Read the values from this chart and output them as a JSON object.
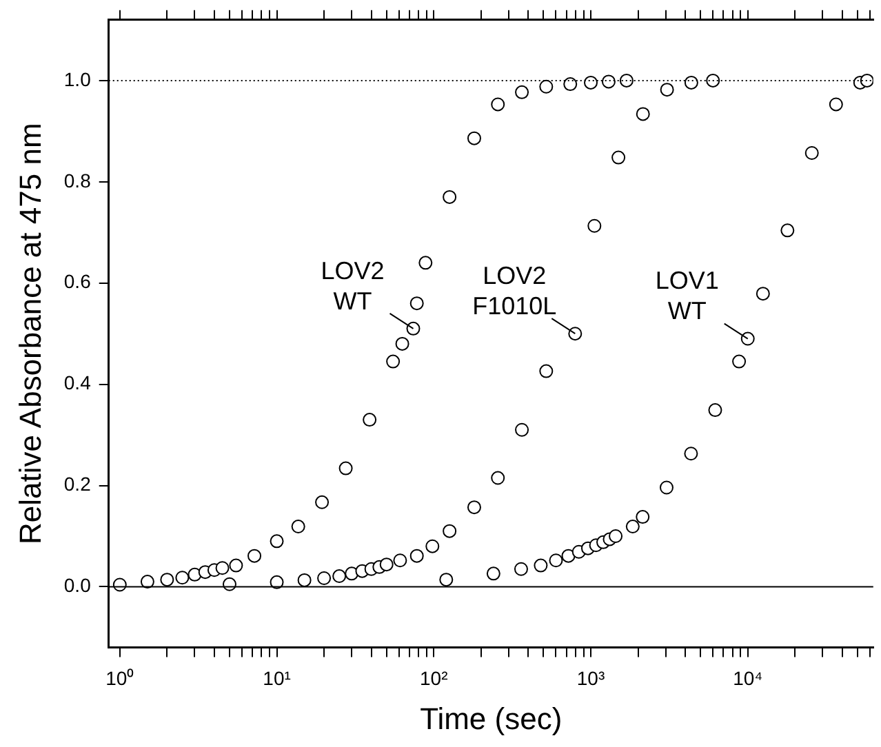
{
  "chart_data": {
    "type": "scatter",
    "xlabel": "Time (sec)",
    "ylabel": "Relative Absorbance at 475 nm",
    "log": "x",
    "grid": false,
    "legend": false,
    "marker": "circle",
    "xlim": [
      0.85,
      63000
    ],
    "ylim": [
      -0.12,
      1.12
    ],
    "xticks": [
      {
        "value": 1,
        "label": "10⁰"
      },
      {
        "value": 2,
        "label": null
      },
      {
        "value": 3,
        "label": null
      },
      {
        "value": 4,
        "label": null
      },
      {
        "value": 5,
        "label": null
      },
      {
        "value": 6,
        "label": null
      },
      {
        "value": 7,
        "label": null
      },
      {
        "value": 8,
        "label": null
      },
      {
        "value": 9,
        "label": null
      },
      {
        "value": 10,
        "label": "10¹"
      },
      {
        "value": 20,
        "label": null
      },
      {
        "value": 30,
        "label": null
      },
      {
        "value": 40,
        "label": null
      },
      {
        "value": 50,
        "label": null
      },
      {
        "value": 60,
        "label": null
      },
      {
        "value": 70,
        "label": null
      },
      {
        "value": 80,
        "label": null
      },
      {
        "value": 90,
        "label": null
      },
      {
        "value": 100,
        "label": "10²"
      },
      {
        "value": 200,
        "label": null
      },
      {
        "value": 300,
        "label": null
      },
      {
        "value": 400,
        "label": null
      },
      {
        "value": 500,
        "label": null
      },
      {
        "value": 600,
        "label": null
      },
      {
        "value": 700,
        "label": null
      },
      {
        "value": 800,
        "label": null
      },
      {
        "value": 900,
        "label": null
      },
      {
        "value": 1000,
        "label": "10³"
      },
      {
        "value": 2000,
        "label": null
      },
      {
        "value": 3000,
        "label": null
      },
      {
        "value": 4000,
        "label": null
      },
      {
        "value": 5000,
        "label": null
      },
      {
        "value": 6000,
        "label": null
      },
      {
        "value": 7000,
        "label": null
      },
      {
        "value": 8000,
        "label": null
      },
      {
        "value": 9000,
        "label": null
      },
      {
        "value": 10000,
        "label": "10⁴"
      },
      {
        "value": 20000,
        "label": null
      },
      {
        "value": 30000,
        "label": null
      },
      {
        "value": 40000,
        "label": null
      },
      {
        "value": 50000,
        "label": null
      },
      {
        "value": 60000,
        "label": null
      }
    ],
    "yticks": [
      {
        "value": 0,
        "label": "0.0"
      },
      {
        "value": 0.2,
        "label": "0.2"
      },
      {
        "value": 0.4,
        "label": "0.4"
      },
      {
        "value": 0.6,
        "label": "0.6"
      },
      {
        "value": 0.8,
        "label": "0.8"
      },
      {
        "value": 1,
        "label": "1.0"
      }
    ],
    "ref_lines": [
      {
        "axis": "y",
        "value": 1,
        "line_style": "dotted",
        "color": "#000000"
      },
      {
        "axis": "y",
        "value": 0,
        "line_style": "solid",
        "color": "#000000"
      }
    ],
    "annotations": [
      {
        "text": "LOV2\nWT",
        "x": 74,
        "y": 0.51
      },
      {
        "text": "LOV2\nF1010L",
        "x": 795,
        "y": 0.5
      },
      {
        "text": "LOV1\nWT",
        "x": 10000,
        "y": 0.49
      }
    ],
    "series": [
      {
        "color": "#000000",
        "x": [
          1,
          1.5,
          2,
          2.5,
          3,
          3.5,
          4,
          4.5,
          5.5,
          7.2,
          10,
          13.7,
          19.4,
          27.5,
          39,
          55,
          63,
          74,
          78,
          88.6,
          126,
          181,
          256,
          364,
          520,
          740,
          1000,
          1300,
          1690
        ],
        "values": [
          0.004,
          0.01,
          0.014,
          0.018,
          0.024,
          0.029,
          0.033,
          0.037,
          0.042,
          0.061,
          0.09,
          0.119,
          0.167,
          0.234,
          0.33,
          0.445,
          0.48,
          0.51,
          0.56,
          0.64,
          0.77,
          0.886,
          0.953,
          0.977,
          0.988,
          0.993,
          0.996,
          0.998,
          1.0
        ]
      },
      {
        "color": "#000000",
        "x": [
          5,
          10,
          15,
          20,
          25,
          30,
          35,
          40,
          45,
          50,
          61,
          78,
          98,
          126,
          181,
          256,
          364,
          520,
          795,
          1055,
          1500,
          2150,
          3060,
          4370,
          6000
        ],
        "values": [
          0.005,
          0.009,
          0.013,
          0.017,
          0.021,
          0.026,
          0.031,
          0.035,
          0.039,
          0.044,
          0.052,
          0.061,
          0.08,
          0.11,
          0.157,
          0.215,
          0.31,
          0.426,
          0.5,
          0.713,
          0.848,
          0.934,
          0.982,
          0.996,
          1.0
        ]
      },
      {
        "color": "#000000",
        "x": [
          120,
          240,
          360,
          480,
          600,
          720,
          840,
          960,
          1080,
          1200,
          1320,
          1440,
          1850,
          2140,
          3040,
          4350,
          6200,
          8800,
          10000,
          12500,
          17900,
          25600,
          36500,
          52000,
          57500
        ],
        "values": [
          0.014,
          0.026,
          0.035,
          0.042,
          0.052,
          0.061,
          0.069,
          0.076,
          0.082,
          0.088,
          0.094,
          0.1,
          0.119,
          0.138,
          0.196,
          0.263,
          0.349,
          0.445,
          0.49,
          0.579,
          0.704,
          0.857,
          0.953,
          0.996,
          1.0
        ]
      }
    ]
  }
}
